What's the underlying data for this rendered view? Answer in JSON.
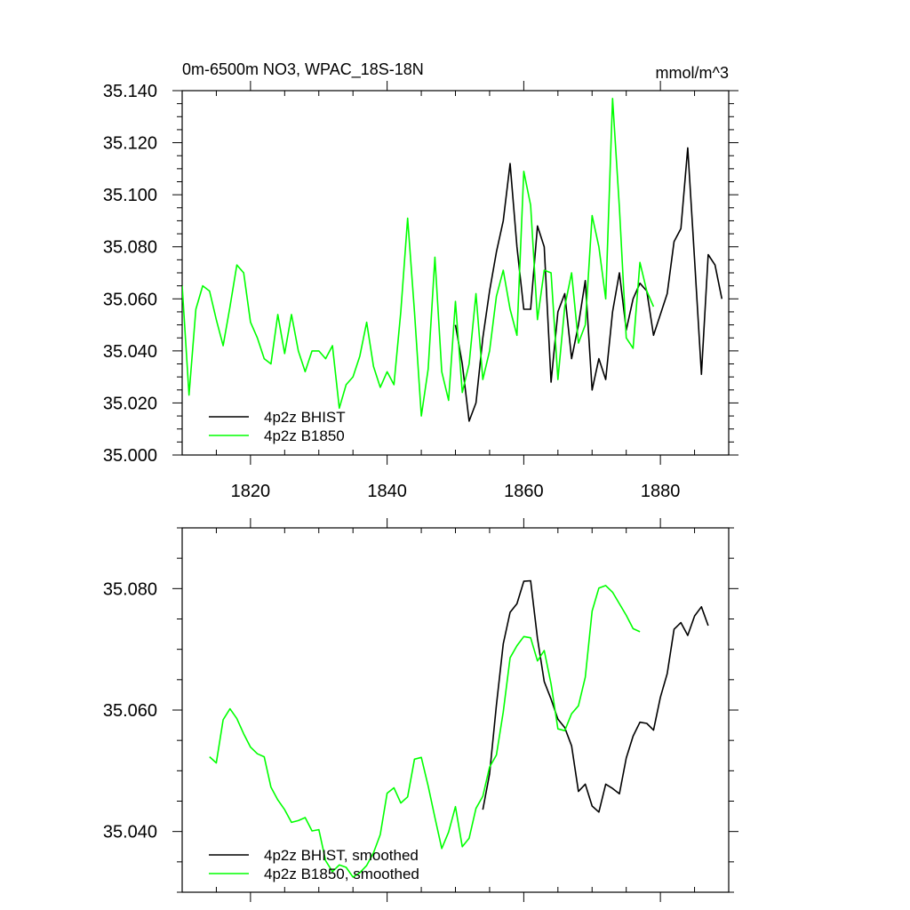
{
  "colors": {
    "bhist": "#000000",
    "b1850": "#00ff00"
  },
  "chart_data": [
    {
      "type": "line",
      "title": "0m-6500m NO3, WPAC_18S-18N",
      "units": "mmol/m^3",
      "xlim": [
        1810,
        1890
      ],
      "ylim": [
        35.0,
        35.14
      ],
      "xticks": [
        1820,
        1840,
        1860,
        1880
      ],
      "xtick_labels": [
        "1820",
        "1840",
        "1860",
        "1880"
      ],
      "yticks": [
        35.0,
        35.02,
        35.04,
        35.06,
        35.08,
        35.1,
        35.12,
        35.14
      ],
      "ytick_labels": [
        "35.000",
        "35.020",
        "35.040",
        "35.060",
        "35.080",
        "35.100",
        "35.120",
        "35.140"
      ],
      "legend_position": "bottom-left",
      "series": [
        {
          "name": "4p2z BHIST",
          "color_key": "bhist",
          "x": [
            1850,
            1851,
            1852,
            1853,
            1854,
            1855,
            1856,
            1857,
            1858,
            1859,
            1860,
            1861,
            1862,
            1863,
            1864,
            1865,
            1866,
            1867,
            1868,
            1869,
            1870,
            1871,
            1872,
            1873,
            1874,
            1875,
            1876,
            1877,
            1878,
            1879,
            1880,
            1881,
            1882,
            1883,
            1884,
            1885,
            1886,
            1887,
            1888,
            1889
          ],
          "values": [
            35.05,
            35.035,
            35.013,
            35.02,
            35.045,
            35.063,
            35.078,
            35.09,
            35.112,
            35.08,
            35.056,
            35.056,
            35.088,
            35.08,
            35.028,
            35.055,
            35.062,
            35.037,
            35.05,
            35.067,
            35.025,
            35.037,
            35.029,
            35.055,
            35.07,
            35.048,
            35.06,
            35.066,
            35.063,
            35.046,
            35.054,
            35.062,
            35.082,
            35.087,
            35.118,
            35.075,
            35.031,
            35.077,
            35.073,
            35.06
          ]
        },
        {
          "name": "4p2z B1850",
          "color_key": "b1850",
          "x": [
            1810,
            1811,
            1812,
            1813,
            1814,
            1815,
            1816,
            1817,
            1818,
            1819,
            1820,
            1821,
            1822,
            1823,
            1824,
            1825,
            1826,
            1827,
            1828,
            1829,
            1830,
            1831,
            1832,
            1833,
            1834,
            1835,
            1836,
            1837,
            1838,
            1839,
            1840,
            1841,
            1842,
            1843,
            1844,
            1845,
            1846,
            1847,
            1848,
            1849,
            1850,
            1851,
            1852,
            1853,
            1854,
            1855,
            1856,
            1857,
            1858,
            1859,
            1860,
            1861,
            1862,
            1863,
            1864,
            1865,
            1866,
            1867,
            1868,
            1869,
            1870,
            1871,
            1872,
            1873,
            1874,
            1875,
            1876,
            1877,
            1878,
            1879
          ],
          "values": [
            35.065,
            35.023,
            35.056,
            35.065,
            35.063,
            35.052,
            35.042,
            35.057,
            35.073,
            35.07,
            35.051,
            35.045,
            35.037,
            35.035,
            35.054,
            35.039,
            35.054,
            35.04,
            35.032,
            35.04,
            35.04,
            35.037,
            35.042,
            35.018,
            35.027,
            35.03,
            35.038,
            35.051,
            35.034,
            35.026,
            35.032,
            35.027,
            35.055,
            35.091,
            35.055,
            35.015,
            35.033,
            35.076,
            35.032,
            35.021,
            35.059,
            35.024,
            35.035,
            35.062,
            35.029,
            35.04,
            35.061,
            35.071,
            35.056,
            35.046,
            35.109,
            35.096,
            35.052,
            35.071,
            35.07,
            35.029,
            35.057,
            35.07,
            35.043,
            35.05,
            35.092,
            35.08,
            35.06,
            35.137,
            35.095,
            35.045,
            35.041,
            35.074,
            35.063,
            35.057
          ]
        }
      ]
    },
    {
      "type": "line",
      "title": "",
      "units": "",
      "xlim": [
        1810,
        1890
      ],
      "ylim": [
        35.03,
        35.09
      ],
      "xticks": [
        1820,
        1840,
        1860,
        1880
      ],
      "xtick_labels": [],
      "yticks": [
        35.04,
        35.06,
        35.08
      ],
      "ytick_labels": [
        "35.040",
        "35.060",
        "35.080"
      ],
      "legend_position": "bottom-left",
      "series": [
        {
          "name": "4p2z BHIST, smoothed",
          "color_key": "bhist",
          "x": [
            1854,
            1855,
            1856,
            1857,
            1858,
            1859,
            1860,
            1861,
            1862,
            1863,
            1864,
            1865,
            1866,
            1867,
            1868,
            1869,
            1870,
            1871,
            1872,
            1873,
            1874,
            1875,
            1876,
            1877,
            1878,
            1879,
            1880,
            1881,
            1882,
            1883,
            1884,
            1885,
            1886,
            1887
          ],
          "values": [
            35.0436,
            35.0495,
            35.0608,
            35.0709,
            35.0761,
            35.0775,
            35.0812,
            35.0813,
            35.0718,
            35.0647,
            35.0618,
            35.0585,
            35.0571,
            35.0541,
            35.0466,
            35.0478,
            35.0442,
            35.0432,
            35.0478,
            35.0471,
            35.0462,
            35.0521,
            35.0557,
            35.058,
            35.0578,
            35.0567,
            35.0621,
            35.066,
            35.0733,
            35.0744,
            35.0723,
            35.0755,
            35.077,
            35.0739
          ]
        },
        {
          "name": "4p2z B1850, smoothed",
          "color_key": "b1850",
          "x": [
            1814,
            1815,
            1816,
            1817,
            1818,
            1819,
            1820,
            1821,
            1822,
            1823,
            1824,
            1825,
            1826,
            1827,
            1828,
            1829,
            1830,
            1831,
            1832,
            1833,
            1834,
            1835,
            1836,
            1837,
            1838,
            1839,
            1840,
            1841,
            1842,
            1843,
            1844,
            1845,
            1846,
            1847,
            1848,
            1849,
            1850,
            1851,
            1852,
            1853,
            1854,
            1855,
            1856,
            1857,
            1858,
            1859,
            1860,
            1861,
            1862,
            1863,
            1864,
            1865,
            1866,
            1867,
            1868,
            1869,
            1870,
            1871,
            1872,
            1873,
            1874,
            1875,
            1876,
            1877
          ],
          "values": [
            35.0523,
            35.0513,
            35.0584,
            35.0602,
            35.0586,
            35.0561,
            35.0539,
            35.0528,
            35.0523,
            35.0473,
            35.0452,
            35.0436,
            35.0415,
            35.0418,
            35.0423,
            35.0401,
            35.0403,
            35.0352,
            35.0334,
            35.0345,
            35.0341,
            35.0325,
            35.0332,
            35.0344,
            35.0365,
            35.0395,
            35.0463,
            35.0472,
            35.0447,
            35.0457,
            35.0519,
            35.0522,
            35.0475,
            35.0423,
            35.0372,
            35.0399,
            35.0441,
            35.0375,
            35.0389,
            35.0438,
            35.0458,
            35.0506,
            35.0526,
            35.0597,
            35.0686,
            35.0706,
            35.0721,
            35.0719,
            35.0681,
            35.0698,
            35.0643,
            35.0569,
            35.0566,
            35.0594,
            35.0607,
            35.0654,
            35.0763,
            35.0801,
            35.0805,
            35.0794,
            35.0775,
            35.0756,
            35.0734,
            35.0729
          ]
        }
      ]
    }
  ]
}
